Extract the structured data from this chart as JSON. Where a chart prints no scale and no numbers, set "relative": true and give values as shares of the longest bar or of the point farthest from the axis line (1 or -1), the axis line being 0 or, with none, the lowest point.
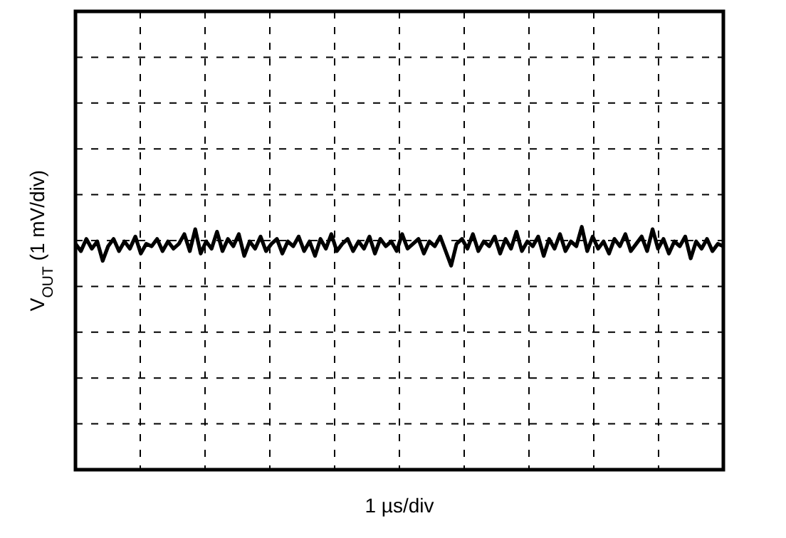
{
  "chart_data": {
    "type": "line",
    "relative": true,
    "xlabel": "1 µs/div",
    "ylabel": "V$_{OUT}$ (1 mV/div)",
    "grid": true,
    "line_style": "solid",
    "categories": [
      null,
      null,
      null,
      null,
      null,
      null,
      null,
      null,
      null,
      null,
      null,
      null,
      null,
      null,
      null,
      null,
      null,
      null,
      null,
      null,
      null,
      null,
      null,
      null,
      null,
      null,
      null,
      null,
      null,
      null,
      null,
      null,
      null,
      null,
      null,
      null,
      null,
      null,
      null,
      null,
      null,
      null,
      null,
      null,
      null,
      null,
      null,
      null,
      null,
      null,
      null,
      null,
      null,
      null,
      null,
      null,
      null,
      null,
      null,
      null,
      null,
      null,
      null,
      null,
      null,
      null,
      null,
      null,
      null,
      null,
      null,
      null,
      null,
      null,
      null,
      null,
      null,
      null,
      null,
      null,
      null,
      null,
      null,
      null,
      null,
      null,
      null,
      null,
      null,
      null,
      null,
      null,
      null,
      null,
      null,
      null,
      null,
      null,
      null,
      null,
      null,
      null,
      null,
      null,
      null,
      null,
      null,
      null,
      null,
      null,
      null,
      null,
      null,
      null,
      null,
      null,
      null,
      null,
      null,
      null
    ],
    "series": [
      {
        "color": "#000000",
        "values": [
          0.93,
          0.9,
          0.95,
          0.91,
          0.94,
          0.86,
          0.92,
          0.95,
          0.9,
          0.94,
          0.91,
          0.96,
          0.89,
          0.93,
          0.92,
          0.95,
          0.9,
          0.94,
          0.91,
          0.93,
          0.97,
          0.9,
          0.99,
          0.89,
          0.94,
          0.91,
          0.98,
          0.9,
          0.95,
          0.92,
          0.97,
          0.88,
          0.94,
          0.91,
          0.96,
          0.9,
          0.93,
          0.95,
          0.89,
          0.94,
          0.92,
          0.96,
          0.9,
          0.94,
          0.88,
          0.95,
          0.91,
          0.97,
          0.9,
          0.93,
          0.95,
          0.9,
          0.94,
          0.91,
          0.96,
          0.89,
          0.95,
          0.92,
          0.94,
          0.9,
          0.97,
          0.91,
          0.93,
          0.95,
          0.89,
          0.94,
          0.92,
          0.96,
          0.9,
          0.84,
          0.93,
          0.95,
          0.91,
          0.97,
          0.9,
          0.94,
          0.92,
          0.96,
          0.89,
          0.95,
          0.91,
          0.98,
          0.9,
          0.94,
          0.92,
          0.96,
          0.88,
          0.95,
          0.91,
          0.97,
          0.9,
          0.94,
          0.92,
          1.0,
          0.9,
          0.96,
          0.91,
          0.94,
          0.89,
          0.95,
          0.92,
          0.97,
          0.9,
          0.93,
          0.96,
          0.9,
          0.99,
          0.91,
          0.95,
          0.89,
          0.94,
          0.92,
          0.96,
          0.87,
          0.94,
          0.91,
          0.95,
          0.9,
          0.93,
          0.92
        ]
      }
    ]
  }
}
